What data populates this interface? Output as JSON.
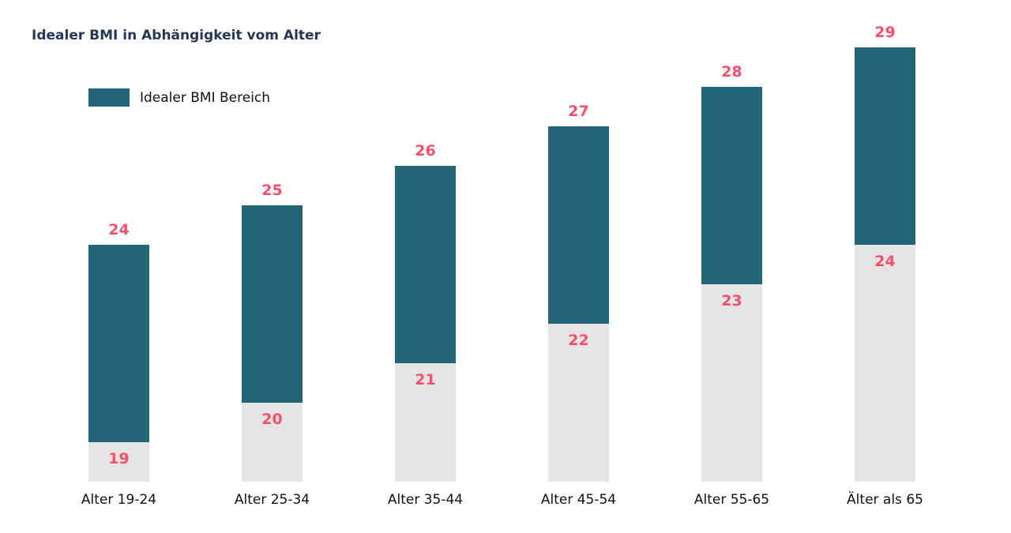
{
  "chart_data": {
    "type": "bar",
    "title": "Idealer BMI in Abhängigkeit vom Alter",
    "categories": [
      "Alter 19-24",
      "Alter 25-34",
      "Alter 35-44",
      "Alter 45-54",
      "Alter 55-65",
      "Älter als 65"
    ],
    "series": [
      {
        "name": "",
        "role": "lower",
        "values": [
          19,
          20,
          21,
          22,
          23,
          24
        ]
      },
      {
        "name": "Idealer BMI Bereich",
        "role": "upper",
        "values": [
          24,
          25,
          26,
          27,
          28,
          29
        ]
      }
    ],
    "legend": {
      "label": "Idealer BMI Bereich",
      "position": "top-left"
    },
    "ylim": [
      19,
      29
    ],
    "grid": false,
    "colors": {
      "range": "#226577",
      "base": "#e5e5e5",
      "label": "#f5516b",
      "title": "#253754"
    }
  }
}
